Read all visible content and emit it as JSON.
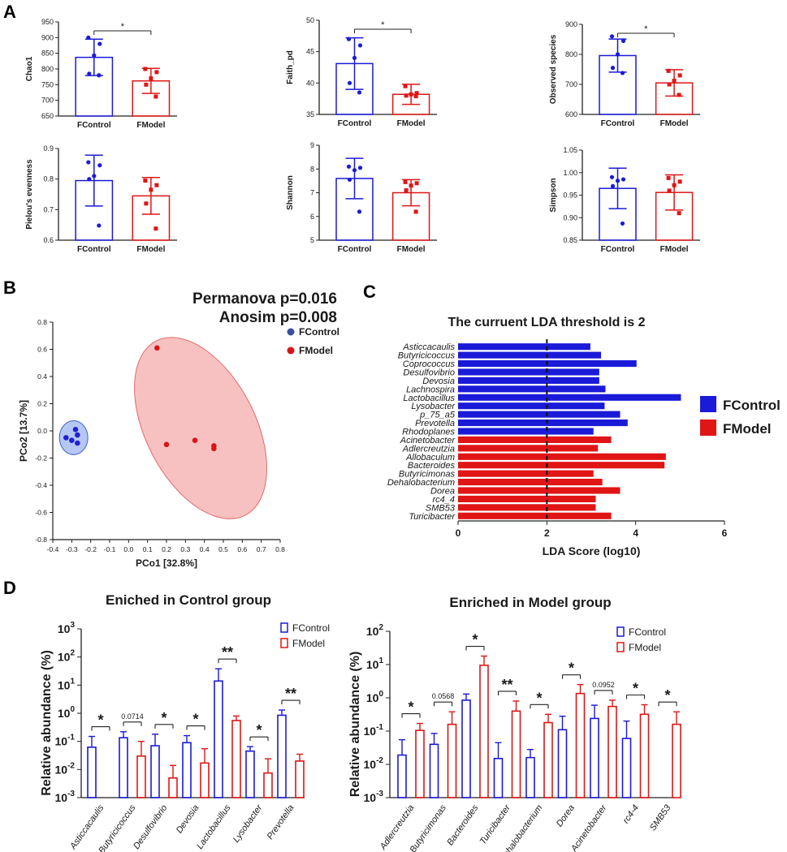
{
  "panel_labels": [
    "A",
    "B",
    "C",
    "D"
  ],
  "colors": {
    "control": "#1a1ad8",
    "model": "#e01515",
    "text": "#1a1a1a",
    "ellipse_control": "#a8bdf0",
    "ellipse_model": "#f7b6b6",
    "pcoa_control_dot": "#2020d0",
    "pcoa_model_dot": "#d81515"
  },
  "chart_data": [
    {
      "id": "a1",
      "type": "bar",
      "ylabel": "Chao1",
      "ylim": [
        650,
        950
      ],
      "yticks": [
        "650",
        "700",
        "750",
        "800",
        "850",
        "900",
        "950"
      ],
      "categories": [
        "FControl",
        "FModel"
      ],
      "means": [
        837,
        762
      ],
      "sd": [
        58,
        40
      ],
      "points": [
        [
          900,
          880,
          843,
          785,
          780
        ],
        [
          800,
          790,
          770,
          750,
          712
        ]
      ],
      "significance": "*"
    },
    {
      "id": "a2",
      "type": "bar",
      "ylabel": "Faith_pd",
      "ylim": [
        35,
        50
      ],
      "yticks": [
        "35",
        "40",
        "45",
        "50"
      ],
      "categories": [
        "FControl",
        "FModel"
      ],
      "means": [
        43.1,
        38.2
      ],
      "sd": [
        4.1,
        1.6
      ],
      "points": [
        [
          47,
          46,
          44,
          40,
          38.5
        ],
        [
          39.5,
          38.4,
          38.2,
          38.0,
          37.9
        ]
      ],
      "significance": "*"
    },
    {
      "id": "a3",
      "type": "bar",
      "ylabel": "Observed species",
      "ylim": [
        600,
        900
      ],
      "yticks": [
        "600",
        "700",
        "800",
        "900"
      ],
      "categories": [
        "FControl",
        "FModel"
      ],
      "means": [
        796,
        705
      ],
      "sd": [
        55,
        44
      ],
      "points": [
        [
          860,
          845,
          800,
          755,
          738
        ],
        [
          745,
          730,
          712,
          700,
          665
        ]
      ],
      "significance": "*"
    },
    {
      "id": "a4",
      "type": "bar",
      "ylabel": "Pielou's evenness",
      "ylim": [
        0.6,
        0.9
      ],
      "yticks": [
        "0.6",
        "0.7",
        "0.8",
        "0.9"
      ],
      "categories": [
        "FControl",
        "FModel"
      ],
      "means": [
        0.795,
        0.745
      ],
      "sd": [
        0.083,
        0.06
      ],
      "points": [
        [
          0.855,
          0.845,
          0.81,
          0.8,
          0.648
        ],
        [
          0.795,
          0.78,
          0.765,
          0.72,
          0.638
        ]
      ],
      "significance": ""
    },
    {
      "id": "a5",
      "type": "bar",
      "ylabel": "Shannon",
      "ylim": [
        5,
        9
      ],
      "yticks": [
        "5",
        "6",
        "7",
        "8",
        "9"
      ],
      "categories": [
        "FControl",
        "FModel"
      ],
      "means": [
        7.6,
        7.0
      ],
      "sd": [
        0.85,
        0.55
      ],
      "points": [
        [
          8.1,
          8.05,
          7.95,
          7.55,
          6.2
        ],
        [
          7.45,
          7.4,
          7.3,
          7.1,
          6.2
        ]
      ],
      "significance": ""
    },
    {
      "id": "a6",
      "type": "bar",
      "ylabel": "Simpson",
      "ylim": [
        0.85,
        1.05
      ],
      "yticks": [
        "0.85",
        "0.90",
        "0.95",
        "1.00",
        "1.05"
      ],
      "categories": [
        "FControl",
        "FModel"
      ],
      "means": [
        0.965,
        0.956
      ],
      "sd": [
        0.045,
        0.039
      ],
      "points": [
        [
          0.99,
          0.985,
          0.982,
          0.97,
          0.887
        ],
        [
          0.988,
          0.98,
          0.972,
          0.96,
          0.91
        ]
      ],
      "significance": ""
    },
    {
      "id": "b",
      "type": "scatter",
      "annotations": [
        "Permanova p=0.016",
        "Anosim p=0.008"
      ],
      "xlabel": "PCo1 [32.8%]",
      "ylabel": "PCo2 [13.7%]",
      "xlim": [
        -0.4,
        0.8
      ],
      "ylim": [
        -0.8,
        0.8
      ],
      "xticks": [
        "-0.4",
        "-0.3",
        "-0.2",
        "-0.1",
        "0.0",
        "0.1",
        "0.2",
        "0.3",
        "0.4",
        "0.5",
        "0.6",
        "0.7",
        "0.8"
      ],
      "yticks": [
        "-0.8",
        "-0.6",
        "-0.4",
        "-0.2",
        "0.0",
        "0.2",
        "0.4",
        "0.6",
        "0.8"
      ],
      "legend": [
        "FControl",
        "FModel"
      ],
      "series": [
        {
          "name": "FControl",
          "points": [
            [
              -0.27,
              -0.03
            ],
            [
              -0.28,
              0.01
            ],
            [
              -0.33,
              -0.05
            ],
            [
              -0.3,
              -0.07
            ],
            [
              -0.27,
              -0.09
            ]
          ]
        },
        {
          "name": "FModel",
          "points": [
            [
              0.15,
              0.61
            ],
            [
              0.2,
              -0.1
            ],
            [
              0.35,
              -0.07
            ],
            [
              0.45,
              -0.11
            ],
            [
              0.45,
              -0.13
            ]
          ]
        }
      ],
      "ellipses": [
        {
          "name": "FControl",
          "center": [
            -0.29,
            -0.05
          ],
          "radii": [
            0.075,
            0.125
          ],
          "angle": 0
        },
        {
          "name": "FModel",
          "center": [
            0.38,
            0.02
          ],
          "radii": [
            0.29,
            0.72
          ],
          "angle": 27
        }
      ]
    },
    {
      "id": "c",
      "type": "bar",
      "orientation": "horizontal",
      "title": "The curruent LDA threshold is 2",
      "xlabel": "LDA Score (log10)",
      "xlim": [
        0,
        6
      ],
      "xticks": [
        "0",
        "2",
        "4",
        "6"
      ],
      "threshold": 2,
      "legend": [
        "FControl",
        "FModel"
      ],
      "categories": [
        "Asticcacaulis",
        "Butyricicoccus",
        "Coprococcus",
        "Desulfovibrio",
        "Devosia",
        "Lachnospira",
        "Lactobacillus",
        "Lysobacter",
        "p_75_a5",
        "Prevotella",
        "Rhodoplanes",
        "Acinetobacter",
        "Adlercreutzia",
        "Allobaculum",
        "Bacteroides",
        "Butyricimonas",
        "Dehalobacterium",
        "Dorea",
        "rc4_4",
        "SMB53",
        "Turicibacter"
      ],
      "values": [
        2.98,
        3.22,
        4.02,
        3.18,
        3.18,
        3.32,
        5.02,
        3.3,
        3.65,
        3.82,
        3.05,
        3.45,
        3.15,
        4.68,
        4.65,
        3.05,
        3.25,
        3.65,
        3.1,
        3.1,
        3.45
      ],
      "groups": [
        "FControl",
        "FControl",
        "FControl",
        "FControl",
        "FControl",
        "FControl",
        "FControl",
        "FControl",
        "FControl",
        "FControl",
        "FControl",
        "FModel",
        "FModel",
        "FModel",
        "FModel",
        "FModel",
        "FModel",
        "FModel",
        "FModel",
        "FModel",
        "FModel"
      ]
    },
    {
      "id": "d1",
      "type": "bar",
      "scale": "log",
      "title": "Eniched in Control group",
      "ylabel": "Relative abundance (%)",
      "yticks_exp": [
        "-3",
        "-2",
        "-1",
        "0",
        "1",
        "2",
        "3"
      ],
      "ylim_exp": [
        -3,
        3
      ],
      "legend": [
        "FControl",
        "FModel"
      ],
      "categories": [
        "Asticcacaulis",
        "Butyricicoccus",
        "Desulfovibrio",
        "Devosia",
        "Lactobacillus",
        "Lysobacter",
        "Prevotella"
      ],
      "series": [
        {
          "name": "FControl",
          "values": [
            0.062,
            0.135,
            0.07,
            0.09,
            14,
            0.045,
            0.85
          ],
          "upper": [
            0.15,
            0.22,
            0.18,
            0.16,
            38,
            0.065,
            1.3
          ]
        },
        {
          "name": "FModel",
          "values": [
            null,
            0.03,
            0.005,
            0.017,
            0.55,
            0.0075,
            0.02
          ],
          "upper": [
            null,
            0.1,
            0.014,
            0.055,
            0.8,
            0.024,
            0.035
          ]
        }
      ],
      "significance": [
        "*",
        "0.0714",
        "*",
        "*",
        "**",
        "*",
        "**"
      ]
    },
    {
      "id": "d2",
      "type": "bar",
      "scale": "log",
      "title": "Enriched in Model group",
      "ylabel": "Relative abundance (%)",
      "yticks_exp": [
        "-3",
        "-2",
        "-1",
        "0",
        "1",
        "2"
      ],
      "ylim_exp": [
        -3,
        2
      ],
      "legend": [
        "FControl",
        "FModel"
      ],
      "categories": [
        "Adlercreutzia",
        "Butyricimonas",
        "Bacteroides",
        "Turicibacter",
        "Dehalobacterium",
        "Dorea",
        "Acinetobacter",
        "rc4-4",
        "SMB53"
      ],
      "series": [
        {
          "name": "FControl",
          "values": [
            0.019,
            0.04,
            0.85,
            0.015,
            0.016,
            0.11,
            0.24,
            0.06,
            null
          ],
          "upper": [
            0.055,
            0.085,
            1.3,
            0.045,
            0.028,
            0.28,
            0.6,
            0.2,
            null
          ]
        },
        {
          "name": "FModel",
          "values": [
            0.105,
            0.16,
            9.5,
            0.4,
            0.18,
            1.35,
            0.55,
            0.32,
            0.16
          ],
          "upper": [
            0.17,
            0.38,
            18,
            0.8,
            0.32,
            2.5,
            0.85,
            0.62,
            0.38
          ]
        }
      ],
      "significance": [
        "*",
        "0.0568",
        "*",
        "**",
        "*",
        "*",
        "0.0952",
        "*",
        "*"
      ]
    }
  ]
}
